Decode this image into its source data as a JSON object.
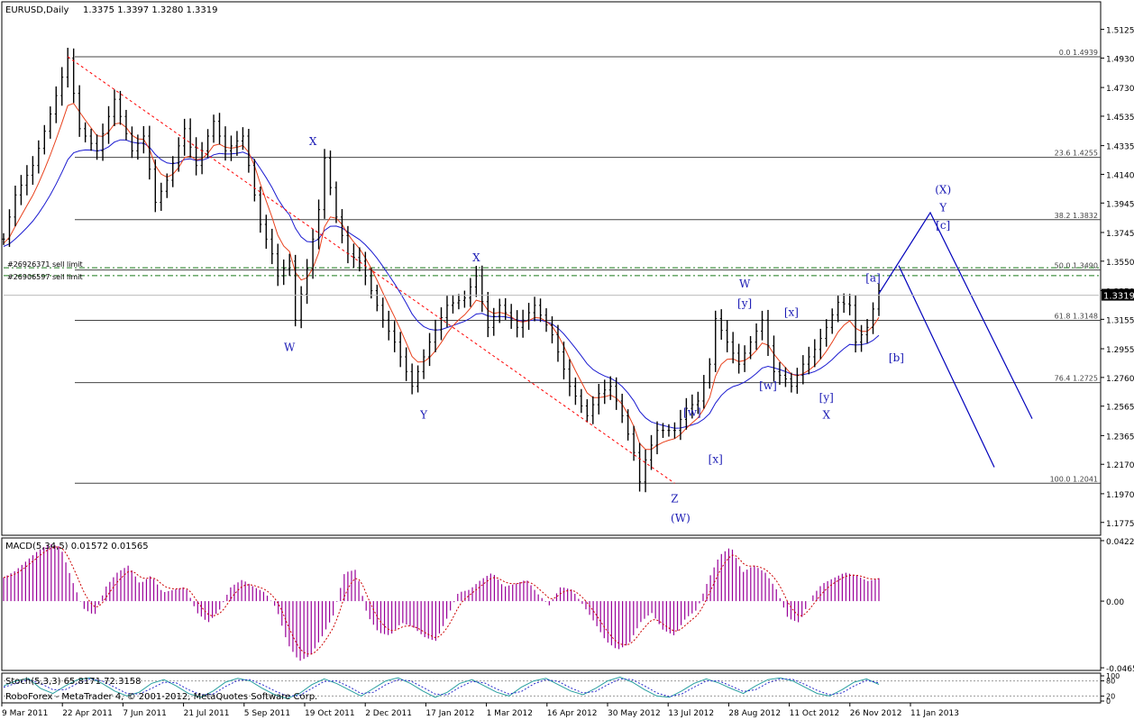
{
  "window": {
    "title": "EURUSD,Daily",
    "ohlc": "1.3375 1.3397 1.3280 1.3319",
    "footer": "RoboForex - MetaTrader 4, © 2001-2012, MetaQuotes Software Corp."
  },
  "colors": {
    "background": "#ffffff",
    "frame": "#000000",
    "bars": "#000000",
    "ma_fast": "#e8401b",
    "ma_slow": "#1a1ad0",
    "fib": "#444444",
    "sell_limit": "#1a7a1a",
    "trend_dashed": "#ff0000",
    "projection": "#0000bb",
    "wave_label": "#1a1ab4",
    "macd_hist": "#990099",
    "macd_signal": "#cc0000",
    "stoch_main": "#2aa0a0",
    "stoch_signal": "#2a2acc"
  },
  "chart_data": [
    {
      "type": "candlestick",
      "title": "EURUSD,Daily",
      "ylim": [
        1.17,
        1.53
      ],
      "price_ticks": [
        "1.5125",
        "1.4930",
        "1.4730",
        "1.4535",
        "1.4335",
        "1.4140",
        "1.3945",
        "1.3745",
        "1.3550",
        "1.3350",
        "1.3155",
        "1.2955",
        "1.2760",
        "1.2565",
        "1.2365",
        "1.2170",
        "1.1970",
        "1.1775"
      ],
      "current_price": "1.3319",
      "x_ticks": [
        "9 Mar 2011",
        "22 Apr 2011",
        "7 Jun 2011",
        "21 Jul 2011",
        "5 Sep 2011",
        "19 Oct 2011",
        "2 Dec 2011",
        "17 Jan 2012",
        "1 Mar 2012",
        "16 Apr 2012",
        "30 May 2012",
        "13 Jul 2012",
        "28 Aug 2012",
        "11 Oct 2012",
        "26 Nov 2012",
        "11 Jan 2013"
      ],
      "price_path": [
        [
          0,
          1.37
        ],
        [
          2,
          1.4
        ],
        [
          5,
          1.42
        ],
        [
          8,
          1.455
        ],
        [
          10,
          1.48
        ],
        [
          11,
          1.493
        ],
        [
          13,
          1.445
        ],
        [
          16,
          1.43
        ],
        [
          19,
          1.465
        ],
        [
          22,
          1.43
        ],
        [
          24,
          1.44
        ],
        [
          26,
          1.395
        ],
        [
          28,
          1.41
        ],
        [
          31,
          1.445
        ],
        [
          33,
          1.42
        ],
        [
          36,
          1.45
        ],
        [
          38,
          1.43
        ],
        [
          41,
          1.44
        ],
        [
          44,
          1.38
        ],
        [
          46,
          1.36
        ],
        [
          47,
          1.345
        ],
        [
          49,
          1.355
        ],
        [
          50,
          1.315
        ],
        [
          52,
          1.35
        ],
        [
          54,
          1.39
        ],
        [
          55,
          1.425
        ],
        [
          57,
          1.385
        ],
        [
          59,
          1.36
        ],
        [
          61,
          1.355
        ],
        [
          63,
          1.335
        ],
        [
          65,
          1.315
        ],
        [
          67,
          1.3
        ],
        [
          70,
          1.27
        ],
        [
          71,
          1.28
        ],
        [
          73,
          1.3
        ],
        [
          76,
          1.325
        ],
        [
          79,
          1.33
        ],
        [
          81,
          1.345
        ],
        [
          83,
          1.31
        ],
        [
          85,
          1.325
        ],
        [
          88,
          1.31
        ],
        [
          91,
          1.325
        ],
        [
          94,
          1.305
        ],
        [
          97,
          1.27
        ],
        [
          100,
          1.25
        ],
        [
          102,
          1.265
        ],
        [
          104,
          1.27
        ],
        [
          106,
          1.25
        ],
        [
          108,
          1.225
        ],
        [
          109,
          1.205
        ],
        [
          110,
          1.22
        ],
        [
          112,
          1.24
        ],
        [
          115,
          1.24
        ],
        [
          117,
          1.255
        ],
        [
          119,
          1.26
        ],
        [
          121,
          1.285
        ],
        [
          122,
          1.316
        ],
        [
          124,
          1.3
        ],
        [
          126,
          1.285
        ],
        [
          128,
          1.3
        ],
        [
          130,
          1.315
        ],
        [
          132,
          1.28
        ],
        [
          134,
          1.275
        ],
        [
          135,
          1.27
        ],
        [
          137,
          1.285
        ],
        [
          139,
          1.295
        ],
        [
          141,
          1.31
        ],
        [
          143,
          1.327
        ],
        [
          145,
          1.325
        ],
        [
          146,
          1.3
        ],
        [
          148,
          1.31
        ],
        [
          150,
          1.335
        ]
      ],
      "fibonacci": [
        {
          "label": "0.0 1.4939",
          "price": 1.4939
        },
        {
          "label": "23.6 1.4255",
          "price": 1.4255
        },
        {
          "label": "38.2 1.3832",
          "price": 1.3832
        },
        {
          "label": "50.0 1.3490",
          "price": 1.349
        },
        {
          "label": "61.8 1.3148",
          "price": 1.3148
        },
        {
          "label": "76.4 1.2725",
          "price": 1.2725
        },
        {
          "label": "100.0 1.2041",
          "price": 1.2041
        }
      ],
      "orders": [
        {
          "label": "#26926371 sell limit",
          "price": 1.3505
        },
        {
          "label": "#26906597 sell limit",
          "price": 1.3452
        }
      ],
      "wave_labels": [
        {
          "text": "X",
          "i": 53,
          "price": 1.434
        },
        {
          "text": "W",
          "i": 49,
          "price": 1.294
        },
        {
          "text": "Y",
          "i": 72,
          "price": 1.248
        },
        {
          "text": "X",
          "i": 81,
          "price": 1.355
        },
        {
          "text": "W",
          "i": 127,
          "price": 1.337
        },
        {
          "text": "[y]",
          "i": 127,
          "price": 1.324
        },
        {
          "text": "[x]",
          "i": 135,
          "price": 1.318
        },
        {
          "text": "[w]",
          "i": 131,
          "price": 1.268
        },
        {
          "text": "[w]",
          "i": 118,
          "price": 1.25
        },
        {
          "text": "[x]",
          "i": 122,
          "price": 1.218
        },
        {
          "text": "[y]",
          "i": 141,
          "price": 1.26
        },
        {
          "text": "X",
          "i": 141,
          "price": 1.248
        },
        {
          "text": "Z",
          "i": 115,
          "price": 1.191
        },
        {
          "text": "(W)",
          "i": 116,
          "price": 1.178
        },
        {
          "text": "[a]",
          "i": 149,
          "price": 1.341
        },
        {
          "text": "[b]",
          "i": 153,
          "price": 1.287
        },
        {
          "text": "(X)",
          "i": 161,
          "price": 1.401
        },
        {
          "text": "Y",
          "i": 161,
          "price": 1.389
        },
        {
          "text": "[c]",
          "i": 161,
          "price": 1.377
        }
      ],
      "projection_prices": {
        "start": 1.333,
        "peak": 1.388,
        "upper_end": 1.248,
        "top_a": 1.352,
        "lower_end": 1.215
      }
    },
    {
      "type": "bar",
      "title": "MACD(5,34,5) 0.01572 0.01565",
      "ylim": [
        -0.0465,
        0.0422
      ],
      "ticks": [
        "0.04222",
        "0.00",
        "-0.04654"
      ],
      "values": [
        0.0165,
        0.021,
        0.028,
        0.035,
        0.04,
        0.038,
        0.015,
        -0.005,
        -0.01,
        0.01,
        0.02,
        0.025,
        0.012,
        0.018,
        0.006,
        0.008,
        0.01,
        -0.008,
        -0.015,
        -0.006,
        0.01,
        0.015,
        0.01,
        0.006,
        -0.005,
        -0.03,
        -0.042,
        -0.038,
        -0.025,
        -0.01,
        0.02,
        0.022,
        -0.01,
        -0.022,
        -0.024,
        -0.015,
        -0.018,
        -0.025,
        -0.028,
        -0.012,
        0.006,
        0.008,
        0.015,
        0.02,
        0.01,
        0.012,
        0.015,
        0.005,
        -0.003,
        0.01,
        0.008,
        -0.003,
        -0.015,
        -0.028,
        -0.034,
        -0.03,
        -0.015,
        -0.008,
        -0.02,
        -0.024,
        -0.012,
        -0.006,
        0.015,
        0.032,
        0.038,
        0.02,
        0.025,
        0.02,
        0.008,
        -0.012,
        -0.015,
        0.002,
        0.012,
        0.016,
        0.02,
        0.018,
        0.014,
        0.016
      ]
    },
    {
      "type": "line",
      "title": "Stoch(5,3,3) 65.8171 72.3158",
      "ticks": [
        "100",
        "80",
        "20",
        "0"
      ],
      "series": [
        {
          "name": "main",
          "values": [
            60,
            80,
            90,
            50,
            30,
            60,
            85,
            92,
            70,
            40,
            20,
            35,
            70,
            85,
            60,
            30,
            15,
            40,
            75,
            90,
            80,
            50,
            25,
            10,
            30,
            65,
            88,
            70,
            45,
            20,
            50,
            80,
            92,
            70,
            40,
            15,
            35,
            70,
            85,
            60,
            35,
            20,
            55,
            80,
            90,
            65,
            40,
            25,
            50,
            80,
            95,
            75,
            45,
            20,
            15,
            40,
            70,
            88,
            72,
            50,
            30,
            60,
            85,
            92,
            80,
            55,
            30,
            20,
            45,
            75,
            88,
            66
          ]
        },
        {
          "name": "signal",
          "values": [
            55,
            70,
            85,
            70,
            45,
            45,
            70,
            88,
            80,
            55,
            30,
            28,
            50,
            75,
            72,
            45,
            25,
            28,
            58,
            82,
            85,
            65,
            40,
            20,
            22,
            50,
            78,
            80,
            58,
            30,
            35,
            65,
            85,
            80,
            55,
            28,
            25,
            55,
            78,
            72,
            48,
            28,
            38,
            68,
            85,
            78,
            52,
            32,
            38,
            65,
            88,
            85,
            60,
            32,
            18,
            28,
            55,
            80,
            80,
            60,
            38,
            45,
            72,
            88,
            86,
            66,
            42,
            25,
            32,
            60,
            82,
            72
          ]
        }
      ]
    }
  ]
}
